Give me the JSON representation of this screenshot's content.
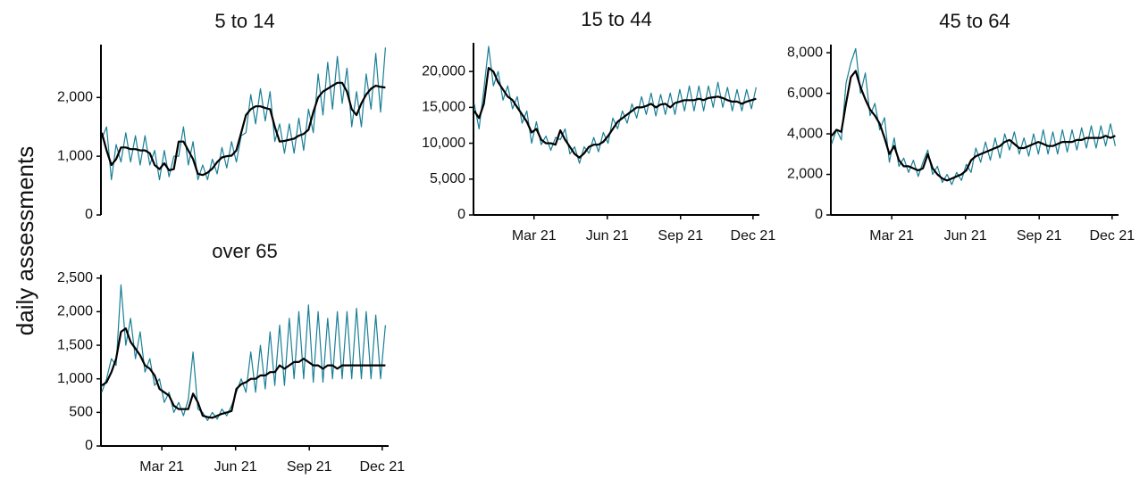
{
  "ylabel": "daily assessments",
  "chart_data": [
    {
      "type": "line",
      "title": "5 to 14",
      "x": [
        -16,
        -10,
        -4,
        2,
        8,
        14,
        20,
        26,
        32,
        38,
        44,
        50,
        56,
        62,
        68,
        74,
        80,
        86,
        92,
        98,
        104,
        110,
        116,
        122,
        128,
        134,
        140,
        146,
        152,
        158,
        164,
        170,
        176,
        182,
        188,
        194,
        200,
        206,
        212,
        218,
        224,
        230,
        236,
        242,
        248,
        254,
        260,
        266,
        272,
        278,
        284,
        290,
        296,
        302,
        308,
        314,
        320,
        326,
        332,
        338
      ],
      "xlim": [
        -17,
        342
      ],
      "ylim": [
        0,
        2900
      ],
      "yticks": [
        0,
        {
          "value": 1000,
          "label": "1,000"
        },
        {
          "value": 2000,
          "label": "2,000"
        }
      ],
      "series": [
        {
          "color": "#1a7f96",
          "values": [
            1300,
            1500,
            600,
            1200,
            900,
            1400,
            900,
            1350,
            850,
            1350,
            850,
            1100,
            600,
            1100,
            650,
            1000,
            1000,
            1500,
            850,
            1250,
            600,
            850,
            600,
            950,
            700,
            1150,
            800,
            1250,
            900,
            1350,
            1400,
            2050,
            1550,
            2150,
            1600,
            2100,
            1250,
            1550,
            1050,
            1550,
            1050,
            1650,
            1100,
            1800,
            1400,
            2400,
            1700,
            2600,
            1800,
            2700,
            1900,
            2500,
            1500,
            2100,
            1500,
            2400,
            1800,
            2750,
            1750,
            2850
          ]
        },
        {
          "color": "#000000",
          "values": [
            1400,
            1100,
            850,
            950,
            1150,
            1150,
            1120,
            1120,
            1100,
            1100,
            1050,
            850,
            780,
            880,
            760,
            780,
            1250,
            1250,
            1100,
            950,
            700,
            680,
            720,
            790,
            900,
            980,
            1000,
            1010,
            1100,
            1400,
            1700,
            1800,
            1850,
            1850,
            1820,
            1800,
            1500,
            1250,
            1260,
            1280,
            1300,
            1350,
            1380,
            1450,
            1750,
            2000,
            2100,
            2150,
            2200,
            2250,
            2250,
            2100,
            1800,
            1700,
            1900,
            2050,
            2150,
            2200,
            2180,
            2170
          ]
        }
      ]
    },
    {
      "type": "line",
      "title": "15 to 44",
      "x": [
        -16,
        -10,
        -4,
        2,
        8,
        14,
        20,
        26,
        32,
        38,
        44,
        50,
        56,
        62,
        68,
        74,
        80,
        86,
        92,
        98,
        104,
        110,
        116,
        122,
        128,
        134,
        140,
        146,
        152,
        158,
        164,
        170,
        176,
        182,
        188,
        194,
        200,
        206,
        212,
        218,
        224,
        230,
        236,
        242,
        248,
        254,
        260,
        266,
        272,
        278,
        284,
        290,
        296,
        302,
        308,
        314,
        320,
        326,
        332,
        338
      ],
      "xlim": [
        -17,
        342
      ],
      "xticks": [
        {
          "value": 59,
          "label": "Mar 21"
        },
        {
          "value": 151,
          "label": "Jun 21"
        },
        {
          "value": 243,
          "label": "Sep 21"
        },
        {
          "value": 334,
          "label": "Dec 21"
        }
      ],
      "ylim": [
        0,
        24000
      ],
      "yticks": [
        0,
        {
          "value": 5000,
          "label": "5,000"
        },
        {
          "value": 10000,
          "label": "10,000"
        },
        {
          "value": 15000,
          "label": "15,000"
        },
        {
          "value": 20000,
          "label": "20,000"
        }
      ],
      "series": [
        {
          "color": "#1a7f96",
          "values": [
            15500,
            12000,
            17500,
            23500,
            18000,
            20000,
            16000,
            18000,
            14800,
            16500,
            12800,
            14500,
            10000,
            13000,
            9800,
            11000,
            9000,
            10800,
            10500,
            12000,
            8500,
            9500,
            7200,
            9500,
            8600,
            10800,
            8800,
            11500,
            10000,
            13500,
            12000,
            14500,
            12800,
            15500,
            13500,
            16500,
            14000,
            17000,
            13800,
            16800,
            14000,
            17000,
            14000,
            17500,
            14500,
            18000,
            14500,
            18000,
            14500,
            18000,
            15000,
            18500,
            15000,
            17800,
            14500,
            17500,
            14500,
            17500,
            14800,
            17800
          ]
        },
        {
          "color": "#000000",
          "values": [
            14500,
            13500,
            15500,
            20500,
            20000,
            18500,
            17500,
            16500,
            16000,
            15000,
            14000,
            13000,
            11500,
            12000,
            10500,
            10000,
            10000,
            9800,
            11800,
            10500,
            9500,
            8500,
            8000,
            8600,
            9500,
            9800,
            9800,
            10200,
            11000,
            12000,
            13000,
            13500,
            14000,
            14500,
            15000,
            15000,
            15200,
            15500,
            15000,
            15400,
            15500,
            15000,
            15600,
            15800,
            16000,
            16000,
            16000,
            16200,
            16000,
            16300,
            16400,
            16500,
            16300,
            16000,
            15800,
            15800,
            15500,
            15800,
            16000,
            16200
          ]
        }
      ]
    },
    {
      "type": "line",
      "title": "45 to 64",
      "x": [
        -16,
        -10,
        -4,
        2,
        8,
        14,
        20,
        26,
        32,
        38,
        44,
        50,
        56,
        62,
        68,
        74,
        80,
        86,
        92,
        98,
        104,
        110,
        116,
        122,
        128,
        134,
        140,
        146,
        152,
        158,
        164,
        170,
        176,
        182,
        188,
        194,
        200,
        206,
        212,
        218,
        224,
        230,
        236,
        242,
        248,
        254,
        260,
        266,
        272,
        278,
        284,
        290,
        296,
        302,
        308,
        314,
        320,
        326,
        332,
        338
      ],
      "xlim": [
        -17,
        342
      ],
      "xticks": [
        {
          "value": 59,
          "label": "Mar 21"
        },
        {
          "value": 151,
          "label": "Jun 21"
        },
        {
          "value": 243,
          "label": "Sep 21"
        },
        {
          "value": 334,
          "label": "Dec 21"
        }
      ],
      "ylim": [
        0,
        8400
      ],
      "yticks": [
        0,
        {
          "value": 2000,
          "label": "2,000"
        },
        {
          "value": 4000,
          "label": "4,000"
        },
        {
          "value": 6000,
          "label": "6,000"
        },
        {
          "value": 8000,
          "label": "8,000"
        }
      ],
      "series": [
        {
          "color": "#1a7f96",
          "values": [
            3500,
            4200,
            3700,
            6500,
            7500,
            8200,
            6000,
            7000,
            4900,
            5500,
            4200,
            4800,
            2600,
            3800,
            2400,
            2800,
            2100,
            2700,
            1900,
            2600,
            3200,
            2000,
            2400,
            1600,
            2000,
            1500,
            2100,
            1700,
            2500,
            2100,
            3300,
            2600,
            3600,
            2700,
            3800,
            2800,
            4000,
            3200,
            4100,
            3000,
            3800,
            2900,
            4000,
            3000,
            4200,
            3000,
            4100,
            3000,
            4200,
            3100,
            4200,
            3200,
            4300,
            3300,
            4400,
            3300,
            4400,
            3400,
            4500,
            3400
          ]
        },
        {
          "color": "#000000",
          "values": [
            3900,
            4200,
            4100,
            5500,
            6800,
            7100,
            6300,
            5700,
            5200,
            4900,
            4500,
            3800,
            3000,
            3400,
            2700,
            2400,
            2400,
            2300,
            2200,
            2300,
            3000,
            2300,
            2000,
            1800,
            1700,
            1800,
            1900,
            2000,
            2200,
            2700,
            2900,
            3000,
            3100,
            3200,
            3300,
            3400,
            3600,
            3700,
            3500,
            3300,
            3300,
            3400,
            3500,
            3600,
            3500,
            3400,
            3400,
            3500,
            3600,
            3600,
            3600,
            3700,
            3700,
            3800,
            3800,
            3800,
            3800,
            3900,
            3800,
            3900
          ]
        }
      ]
    },
    {
      "type": "line",
      "title": "over 65",
      "x": [
        -16,
        -10,
        -4,
        2,
        8,
        14,
        20,
        26,
        32,
        38,
        44,
        50,
        56,
        62,
        68,
        74,
        80,
        86,
        92,
        98,
        104,
        110,
        116,
        122,
        128,
        134,
        140,
        146,
        152,
        158,
        164,
        170,
        176,
        182,
        188,
        194,
        200,
        206,
        212,
        218,
        224,
        230,
        236,
        242,
        248,
        254,
        260,
        266,
        272,
        278,
        284,
        290,
        296,
        302,
        308,
        314,
        320,
        326,
        332,
        338
      ],
      "xlim": [
        -17,
        342
      ],
      "xticks": [
        {
          "value": 59,
          "label": "Mar 21"
        },
        {
          "value": 151,
          "label": "Jun 21"
        },
        {
          "value": 243,
          "label": "Sep 21"
        },
        {
          "value": 334,
          "label": "Dec 21"
        }
      ],
      "ylim": [
        0,
        2550
      ],
      "yticks": [
        0,
        500,
        {
          "value": 1000,
          "label": "1,000"
        },
        {
          "value": 1500,
          "label": "1,500"
        },
        {
          "value": 2000,
          "label": "2,000"
        },
        {
          "value": 2500,
          "label": "2,500"
        }
      ],
      "series": [
        {
          "color": "#1a7f96",
          "values": [
            800,
            1000,
            1300,
            1200,
            2400,
            1500,
            1900,
            1300,
            1700,
            1100,
            1300,
            900,
            1000,
            650,
            800,
            500,
            650,
            450,
            700,
            1400,
            550,
            500,
            380,
            500,
            400,
            550,
            450,
            600,
            800,
            1000,
            800,
            1400,
            800,
            1500,
            850,
            1700,
            900,
            1800,
            900,
            1900,
            1000,
            2000,
            1000,
            2100,
            950,
            2000,
            950,
            1900,
            1000,
            2000,
            1000,
            2000,
            1000,
            2050,
            1000,
            2000,
            1000,
            1950,
            1000,
            1800
          ]
        },
        {
          "color": "#000000",
          "values": [
            900,
            950,
            1100,
            1300,
            1700,
            1750,
            1550,
            1450,
            1350,
            1200,
            1150,
            1050,
            850,
            800,
            750,
            600,
            550,
            550,
            550,
            780,
            650,
            450,
            430,
            420,
            450,
            480,
            500,
            520,
            850,
            920,
            950,
            1000,
            1000,
            1050,
            1050,
            1100,
            1100,
            1200,
            1150,
            1200,
            1250,
            1250,
            1300,
            1250,
            1200,
            1200,
            1150,
            1200,
            1200,
            1150,
            1200,
            1200,
            1200,
            1200,
            1200,
            1200,
            1200,
            1200,
            1200,
            1200
          ]
        }
      ]
    }
  ]
}
